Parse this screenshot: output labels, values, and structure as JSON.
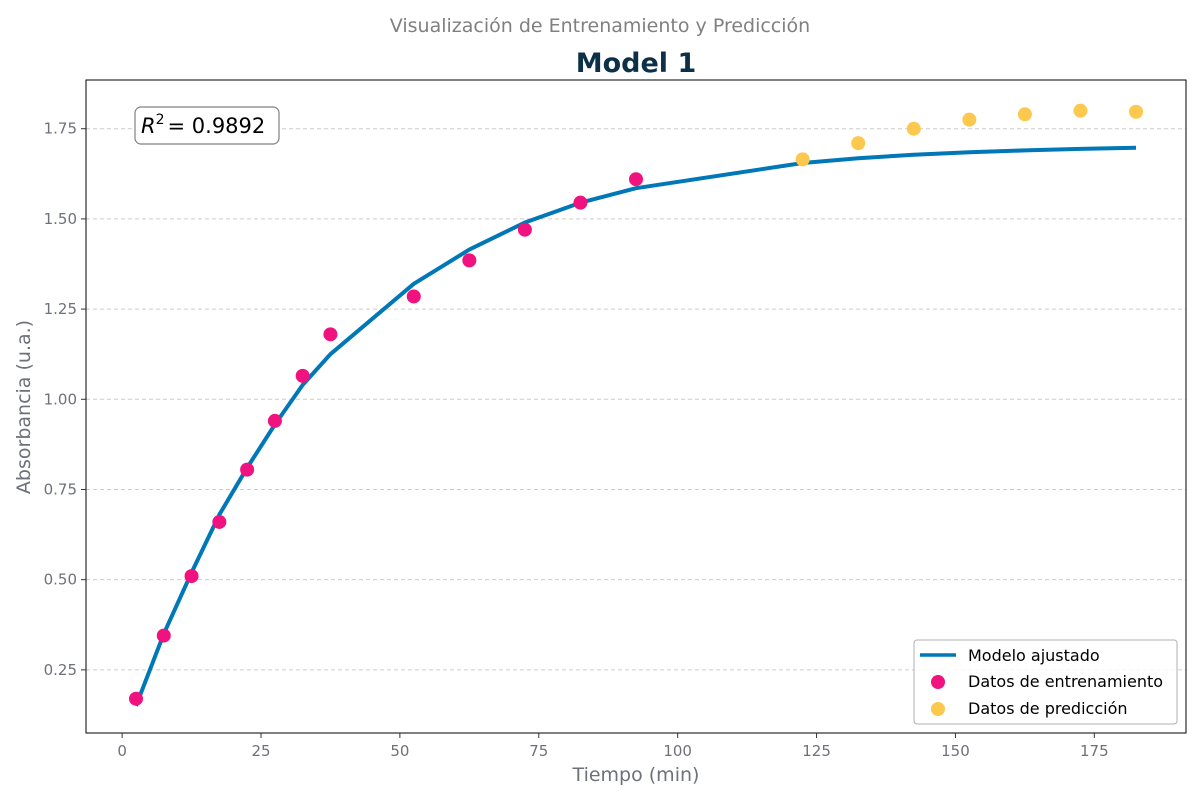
{
  "suptitle": "Visualización de Entrenamiento y Predicción",
  "colors": {
    "fit": "#0077b6",
    "train": "#f0127e",
    "predict": "#fcc84e",
    "title": "#0b3047"
  },
  "annotation": {
    "r2_label": "R",
    "r2_sup": "2",
    "r2_value": "= 0.9892"
  },
  "chart_data": {
    "type": "scatter",
    "title": "Model 1",
    "xlabel": "Tiempo (min)",
    "ylabel": "Absorbancia (u.a.)",
    "xlim": [
      -6.5,
      191.5
    ],
    "ylim": [
      0.075,
      1.885
    ],
    "xticks": [
      0,
      25,
      50,
      75,
      100,
      125,
      150,
      175
    ],
    "xtick_labels": [
      "0",
      "25",
      "50",
      "75",
      "100",
      "125",
      "150",
      "175"
    ],
    "yticks": [
      0.25,
      0.5,
      0.75,
      1.0,
      1.25,
      1.5,
      1.75
    ],
    "ytick_labels": [
      "0.25",
      "0.50",
      "0.75",
      "1.00",
      "1.25",
      "1.50",
      "1.75"
    ],
    "grid": "y-dashed",
    "legend_position": "bottom-right",
    "series": [
      {
        "name": "Modelo ajustado",
        "kind": "line",
        "x": [
          2.5,
          7.5,
          12.5,
          17.5,
          22.5,
          27.5,
          32.5,
          37.5,
          52.5,
          62.5,
          72.5,
          82.5,
          92.5,
          122.5,
          132.5,
          142.5,
          152.5,
          162.5,
          172.5,
          182.5
        ],
        "y": [
          0.15,
          0.35,
          0.52,
          0.68,
          0.81,
          0.93,
          1.04,
          1.125,
          1.32,
          1.415,
          1.49,
          1.545,
          1.585,
          1.655,
          1.668,
          1.678,
          1.685,
          1.69,
          1.694,
          1.697
        ]
      },
      {
        "name": "Datos de entrenamiento",
        "kind": "scatter",
        "x": [
          2.5,
          7.5,
          12.5,
          17.5,
          22.5,
          27.5,
          32.5,
          37.5,
          52.5,
          62.5,
          72.5,
          82.5,
          92.5
        ],
        "y": [
          0.17,
          0.345,
          0.51,
          0.66,
          0.805,
          0.94,
          1.065,
          1.18,
          1.285,
          1.385,
          1.47,
          1.545,
          1.61
        ]
      },
      {
        "name": "Datos de predicción",
        "kind": "scatter",
        "x": [
          122.5,
          132.5,
          142.5,
          152.5,
          162.5,
          172.5,
          182.5
        ],
        "y": [
          1.665,
          1.71,
          1.75,
          1.775,
          1.79,
          1.8,
          1.797
        ]
      }
    ]
  }
}
